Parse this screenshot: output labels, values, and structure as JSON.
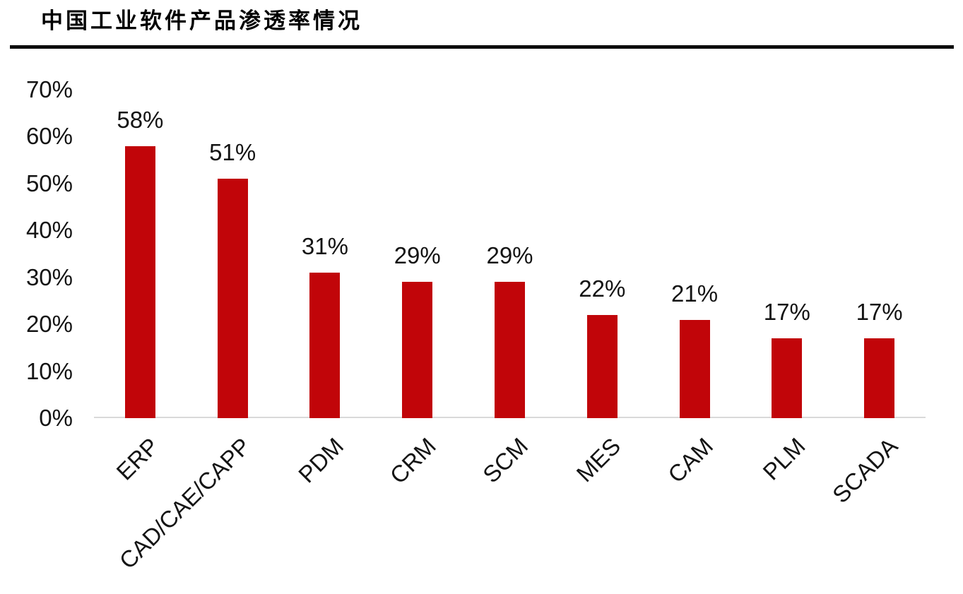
{
  "title": "中国工业软件产品渗透率情况",
  "chart_data": {
    "type": "bar",
    "title": "中国工业软件产品渗透率情况",
    "categories": [
      "ERP",
      "CAD/CAE/CAPP",
      "PDM",
      "CRM",
      "SCM",
      "MES",
      "CAM",
      "PLM",
      "SCADA"
    ],
    "values": [
      58,
      51,
      31,
      29,
      29,
      22,
      21,
      17,
      17
    ],
    "value_labels": [
      "58%",
      "51%",
      "31%",
      "29%",
      "29%",
      "22%",
      "21%",
      "17%",
      "17%"
    ],
    "yticks": [
      0,
      10,
      20,
      30,
      40,
      50,
      60,
      70
    ],
    "ytick_labels": [
      "0%",
      "10%",
      "20%",
      "30%",
      "40%",
      "50%",
      "60%",
      "70%"
    ],
    "ylim": [
      0,
      70
    ],
    "xlabel": "",
    "ylabel": "",
    "grid": false,
    "legend": "none",
    "bar_color": "#c10509",
    "axis_line_color": "#d9d9d9",
    "text_color": "#141414",
    "title_rule_color": "#0d0d0d"
  }
}
